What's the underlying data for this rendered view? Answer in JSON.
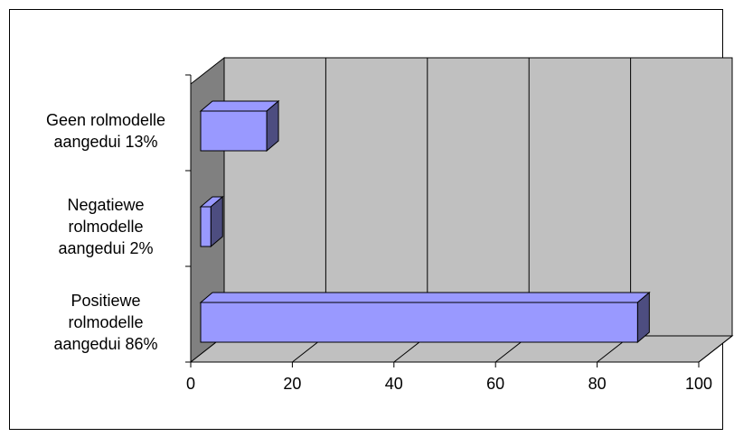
{
  "chart_data": {
    "type": "bar",
    "orientation": "horizontal",
    "style": "3d",
    "title": "",
    "xlabel": "",
    "ylabel": "",
    "categories": [
      [
        "Geen rolmodelle",
        "aangedui 13%"
      ],
      [
        "Negatiewe",
        "rolmodelle",
        "aangedui 2%"
      ],
      [
        "Positiewe",
        "rolmodelle",
        "aangedui 86%"
      ]
    ],
    "values": [
      13,
      2,
      86
    ],
    "xlim": [
      0,
      100
    ],
    "xticks": [
      "0",
      "20",
      "40",
      "60",
      "80",
      "100"
    ],
    "grid": true,
    "legend": "none",
    "colors": {
      "bar_front": "#9999FF",
      "bar_top": "#9999FF",
      "bar_side": "#4D4D80",
      "wall": "#C0C0C0",
      "floor": "#C0C0C0",
      "side_wall": "#808080",
      "grid": "#000000"
    }
  }
}
